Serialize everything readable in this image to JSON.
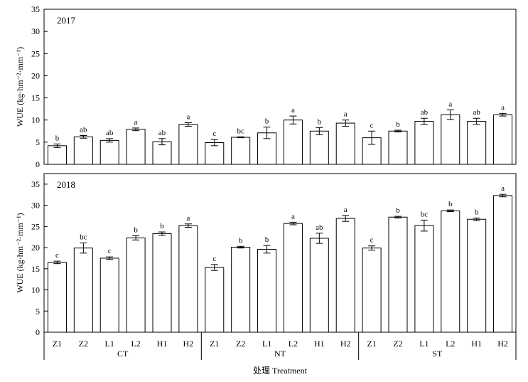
{
  "chart_data": [
    {
      "type": "bar",
      "title": "2017",
      "ylabel": "WUE (kg·hm⁻²·mm⁻¹)",
      "ylim": [
        0,
        35
      ],
      "yticks": [
        0,
        5,
        10,
        15,
        20,
        25,
        30,
        35
      ],
      "categories": [
        "Z1",
        "Z2",
        "L1",
        "L2",
        "H1",
        "H2",
        "Z1",
        "Z2",
        "L1",
        "L2",
        "H1",
        "H2",
        "Z1",
        "Z2",
        "L1",
        "L2",
        "H1",
        "H2"
      ],
      "values": [
        4.2,
        6.2,
        5.4,
        7.9,
        5.1,
        9.0,
        4.9,
        6.1,
        7.1,
        10.0,
        7.5,
        9.3,
        6.0,
        7.5,
        9.7,
        11.2,
        9.7,
        11.2
      ],
      "errors": [
        0.4,
        0.3,
        0.4,
        0.3,
        0.7,
        0.4,
        0.7,
        0.1,
        1.3,
        0.9,
        0.8,
        0.7,
        1.5,
        0.2,
        0.7,
        1.1,
        0.7,
        0.3
      ],
      "significance": [
        "b",
        "ab",
        "ab",
        "a",
        "ab",
        "a",
        "c",
        "bc",
        "b",
        "a",
        "b",
        "a",
        "c",
        "b",
        "ab",
        "a",
        "ab",
        "a"
      ]
    },
    {
      "type": "bar",
      "title": "2018",
      "ylabel": "WUE (kg·hm⁻²·mm⁻¹)",
      "ylim": [
        0,
        37.5
      ],
      "yticks": [
        0,
        5,
        10,
        15,
        20,
        25,
        30,
        35
      ],
      "categories": [
        "Z1",
        "Z2",
        "L1",
        "L2",
        "H1",
        "H2",
        "Z1",
        "Z2",
        "L1",
        "L2",
        "H1",
        "H2",
        "Z1",
        "Z2",
        "L1",
        "L2",
        "H1",
        "H2"
      ],
      "values": [
        16.5,
        19.9,
        17.5,
        22.3,
        23.3,
        25.2,
        15.3,
        20.1,
        19.6,
        25.7,
        22.2,
        26.9,
        19.9,
        27.2,
        25.2,
        28.7,
        26.7,
        32.3
      ],
      "errors": [
        0.3,
        1.2,
        0.3,
        0.5,
        0.4,
        0.4,
        0.7,
        0.2,
        0.9,
        0.3,
        1.2,
        0.7,
        0.5,
        0.2,
        1.3,
        0.2,
        0.3,
        0.3
      ],
      "significance": [
        "c",
        "bc",
        "c",
        "b",
        "b",
        "a",
        "c",
        "b",
        "b",
        "a",
        "ab",
        "a",
        "c",
        "b",
        "bc",
        "b",
        "b",
        "a"
      ]
    }
  ],
  "groups": [
    "CT",
    "NT",
    "ST"
  ],
  "xlabel": "处理 Treatment"
}
